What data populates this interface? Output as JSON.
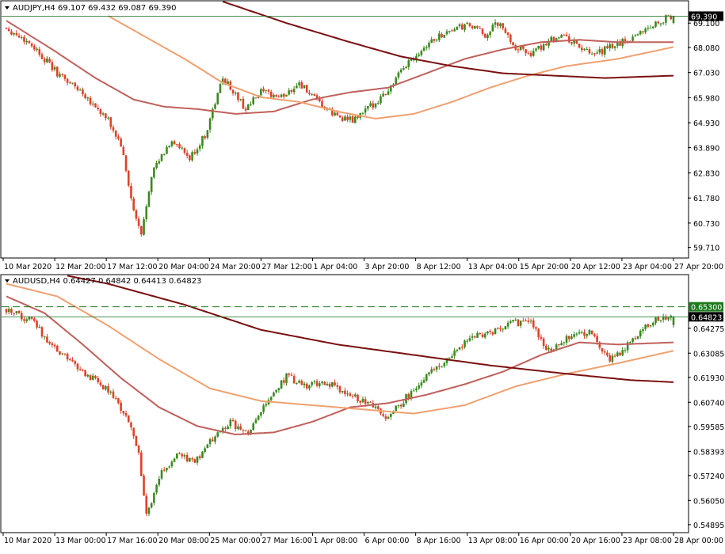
{
  "chart_data": [
    {
      "type": "candlestick",
      "symbol": "AUDJPY",
      "timeframe": "H4",
      "header_text": "AUDJPY,H4  69.107 69.432 69.087 69.390",
      "ohlc": {
        "open": 69.107,
        "high": 69.432,
        "low": 69.087,
        "close": 69.39
      },
      "current_price_label": "69.390",
      "ylim": [
        59.3,
        70.0
      ],
      "y_ticks": [
        "69.100",
        "68.080",
        "67.030",
        "65.980",
        "64.930",
        "63.890",
        "62.830",
        "61.780",
        "60.730",
        "59.710"
      ],
      "x_ticks": [
        "10 Mar 2020",
        "12 Mar 20:00",
        "17 Mar 12:00",
        "20 Mar 04:00",
        "24 Mar 20:00",
        "27 Mar 12:00",
        "1 Apr 04:00",
        "3 Apr 20:00",
        "8 Apr 12:00",
        "13 Apr 04:00",
        "15 Apr 20:00",
        "20 Apr 12:00",
        "23 Apr 04:00",
        "27 Apr 20:00"
      ],
      "close_path": [
        [
          0,
          68.9
        ],
        [
          10,
          68.2
        ],
        [
          20,
          67.0
        ],
        [
          30,
          66.2
        ],
        [
          40,
          65.0
        ],
        [
          45,
          64.0
        ],
        [
          50,
          61.2
        ],
        [
          53,
          60.2
        ],
        [
          57,
          62.8
        ],
        [
          65,
          64.2
        ],
        [
          72,
          63.4
        ],
        [
          78,
          64.4
        ],
        [
          85,
          66.8
        ],
        [
          88,
          66.4
        ],
        [
          94,
          65.5
        ],
        [
          100,
          66.2
        ],
        [
          108,
          66.0
        ],
        [
          115,
          66.6
        ],
        [
          122,
          65.8
        ],
        [
          128,
          65.3
        ],
        [
          136,
          65.0
        ],
        [
          143,
          65.6
        ],
        [
          150,
          66.3
        ],
        [
          158,
          67.5
        ],
        [
          166,
          68.3
        ],
        [
          174,
          68.8
        ],
        [
          182,
          69.0
        ],
        [
          188,
          68.6
        ],
        [
          193,
          69.1
        ],
        [
          200,
          68.1
        ],
        [
          207,
          67.8
        ],
        [
          213,
          68.4
        ],
        [
          218,
          68.6
        ],
        [
          224,
          68.2
        ],
        [
          230,
          67.7
        ],
        [
          237,
          68.1
        ],
        [
          244,
          68.4
        ],
        [
          250,
          68.8
        ],
        [
          257,
          69.2
        ],
        [
          262,
          69.4
        ]
      ],
      "moving_averages": [
        {
          "color": "#c0605a",
          "points": [
            [
              0,
              69.2
            ],
            [
              18,
              68.0
            ],
            [
              35,
              66.8
            ],
            [
              50,
              65.9
            ],
            [
              62,
              65.6
            ],
            [
              75,
              65.5
            ],
            [
              90,
              65.3
            ],
            [
              105,
              65.4
            ],
            [
              120,
              65.9
            ],
            [
              135,
              66.2
            ],
            [
              150,
              66.4
            ],
            [
              165,
              67.0
            ],
            [
              180,
              67.6
            ],
            [
              195,
              68.0
            ],
            [
              210,
              68.3
            ],
            [
              225,
              68.4
            ],
            [
              240,
              68.3
            ],
            [
              262,
              68.3
            ]
          ]
        },
        {
          "color": "#f0a070",
          "points": [
            [
              40,
              69.4
            ],
            [
              55,
              68.5
            ],
            [
              70,
              67.6
            ],
            [
              85,
              66.6
            ],
            [
              100,
              66.0
            ],
            [
              115,
              65.8
            ],
            [
              130,
              65.4
            ],
            [
              145,
              65.1
            ],
            [
              160,
              65.3
            ],
            [
              175,
              65.8
            ],
            [
              190,
              66.4
            ],
            [
              205,
              66.9
            ],
            [
              220,
              67.3
            ],
            [
              240,
              67.6
            ],
            [
              262,
              68.1
            ]
          ]
        },
        {
          "color": "#7a0f0f",
          "points": [
            [
              85,
              70.0
            ],
            [
              110,
              69.1
            ],
            [
              135,
              68.3
            ],
            [
              155,
              67.7
            ],
            [
              175,
              67.3
            ],
            [
              195,
              67.0
            ],
            [
              215,
              66.9
            ],
            [
              235,
              66.8
            ],
            [
              262,
              66.9
            ]
          ]
        }
      ]
    },
    {
      "type": "candlestick",
      "symbol": "AUDUSD",
      "timeframe": "H4",
      "header_text": "AUDUSD,H4  0.64427 0.64842 0.64413 0.64823",
      "ohlc": {
        "open": 0.64427,
        "high": 0.64842,
        "low": 0.64413,
        "close": 0.64823
      },
      "current_price_label": "0.64823",
      "level_line": {
        "label": "0.65300",
        "value": 0.653,
        "color": "#1d7a1d"
      },
      "ylim": [
        0.5455,
        0.668
      ],
      "y_ticks": [
        "0.64275",
        "0.63085",
        "0.61930",
        "0.60740",
        "0.59585",
        "0.58393",
        "0.57240",
        "0.56050",
        "0.54895"
      ],
      "x_ticks": [
        "10 Mar 2020",
        "13 Mar 00:00",
        "17 Mar 16:00",
        "20 Mar 08:00",
        "25 Mar 00:00",
        "27 Mar 16:00",
        "1 Apr 08:00",
        "6 Apr 00:00",
        "8 Apr 16:00",
        "13 Apr 08:00",
        "16 Apr 00:00",
        "20 Apr 16:00",
        "23 Apr 08:00",
        "28 Apr 00:00"
      ],
      "close_path": [
        [
          0,
          0.652
        ],
        [
          10,
          0.646
        ],
        [
          20,
          0.632
        ],
        [
          30,
          0.622
        ],
        [
          40,
          0.613
        ],
        [
          47,
          0.601
        ],
        [
          52,
          0.583
        ],
        [
          55,
          0.553
        ],
        [
          60,
          0.572
        ],
        [
          67,
          0.583
        ],
        [
          74,
          0.578
        ],
        [
          80,
          0.589
        ],
        [
          88,
          0.598
        ],
        [
          95,
          0.592
        ],
        [
          102,
          0.607
        ],
        [
          110,
          0.62
        ],
        [
          118,
          0.615
        ],
        [
          126,
          0.617
        ],
        [
          134,
          0.611
        ],
        [
          142,
          0.607
        ],
        [
          150,
          0.6
        ],
        [
          158,
          0.611
        ],
        [
          166,
          0.622
        ],
        [
          174,
          0.628
        ],
        [
          182,
          0.639
        ],
        [
          190,
          0.64
        ],
        [
          198,
          0.645
        ],
        [
          206,
          0.646
        ],
        [
          212,
          0.632
        ],
        [
          218,
          0.636
        ],
        [
          224,
          0.641
        ],
        [
          230,
          0.64
        ],
        [
          237,
          0.628
        ],
        [
          243,
          0.633
        ],
        [
          249,
          0.642
        ],
        [
          255,
          0.647
        ],
        [
          262,
          0.648
        ]
      ],
      "moving_averages": [
        {
          "color": "#c0605a",
          "points": [
            [
              0,
              0.658
            ],
            [
              15,
              0.65
            ],
            [
              30,
              0.635
            ],
            [
              45,
              0.619
            ],
            [
              60,
              0.605
            ],
            [
              75,
              0.596
            ],
            [
              90,
              0.592
            ],
            [
              105,
              0.593
            ],
            [
              120,
              0.598
            ],
            [
              135,
              0.605
            ],
            [
              150,
              0.607
            ],
            [
              165,
              0.611
            ],
            [
              180,
              0.616
            ],
            [
              195,
              0.622
            ],
            [
              210,
              0.63
            ],
            [
              225,
              0.636
            ],
            [
              240,
              0.635
            ],
            [
              262,
              0.636
            ]
          ]
        },
        {
          "color": "#f0a070",
          "points": [
            [
              0,
              0.664
            ],
            [
              20,
              0.658
            ],
            [
              40,
              0.644
            ],
            [
              60,
              0.628
            ],
            [
              80,
              0.614
            ],
            [
              100,
              0.608
            ],
            [
              120,
              0.606
            ],
            [
              140,
              0.604
            ],
            [
              160,
              0.602
            ],
            [
              180,
              0.606
            ],
            [
              200,
              0.615
            ],
            [
              220,
              0.621
            ],
            [
              240,
              0.626
            ],
            [
              262,
              0.632
            ]
          ]
        },
        {
          "color": "#7a0f0f",
          "points": [
            [
              15,
              0.67
            ],
            [
              40,
              0.664
            ],
            [
              70,
              0.654
            ],
            [
              100,
              0.642
            ],
            [
              130,
              0.635
            ],
            [
              160,
              0.63
            ],
            [
              190,
              0.625
            ],
            [
              220,
              0.621
            ],
            [
              245,
              0.618
            ],
            [
              262,
              0.617
            ]
          ]
        }
      ]
    }
  ],
  "colors": {
    "bull": "#3a8a1e",
    "bear": "#e0402a",
    "grid": "#c8c8c8",
    "axis": "#000000",
    "price_line": "#2e7d32"
  }
}
